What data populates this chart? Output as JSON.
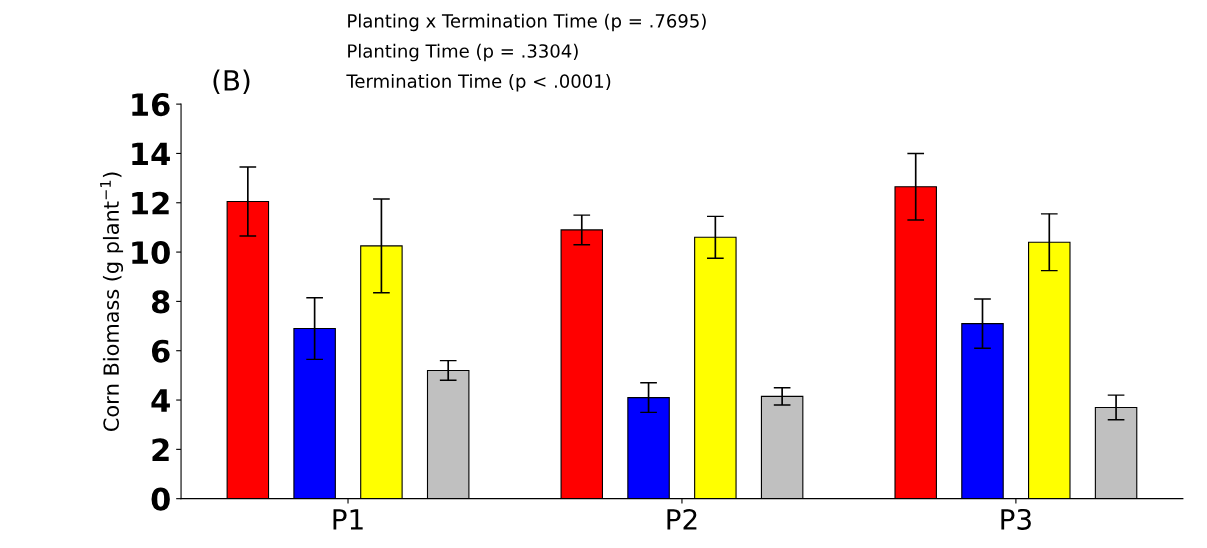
{
  "chart_data": {
    "type": "bar",
    "ylabel": "Corn Biomass (g plant$^{−1}$)",
    "categories": [
      "P1",
      "P2",
      "P3"
    ],
    "series": [
      {
        "color": "#ff0000",
        "values": [
          12.05,
          10.9,
          12.65
        ],
        "errors": [
          1.4,
          0.6,
          1.35
        ]
      },
      {
        "color": "#0000ff",
        "values": [
          6.9,
          4.1,
          7.1
        ],
        "errors": [
          1.25,
          0.6,
          1.0
        ]
      },
      {
        "color": "#ffff00",
        "values": [
          10.25,
          10.6,
          10.4
        ],
        "errors": [
          1.9,
          0.85,
          1.15
        ]
      },
      {
        "color": "#c0c0c0",
        "values": [
          5.2,
          4.15,
          3.7
        ],
        "errors": [
          0.4,
          0.35,
          0.5
        ]
      }
    ],
    "ylim": [
      0,
      16
    ],
    "yticks": [
      0,
      2,
      4,
      6,
      8,
      10,
      12,
      14,
      16
    ],
    "grid": false,
    "legend": false,
    "annotations": [
      "(B)",
      "Planting x Termination Time (p = .7695)",
      "Planting Time (p = .3304)",
      "Termination Time (p < .0001)"
    ]
  }
}
